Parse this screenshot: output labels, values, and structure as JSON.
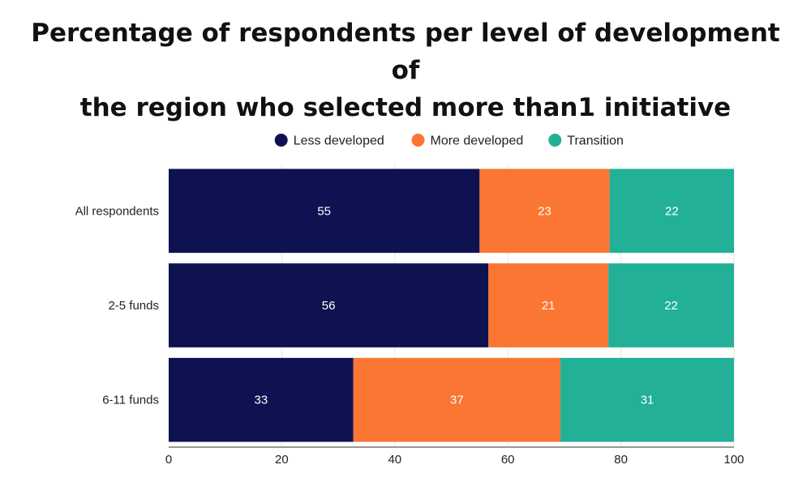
{
  "chart_data": {
    "type": "bar",
    "orientation": "horizontal",
    "stacked": true,
    "title": "Percentage of respondents per level of development of the region who selected more than1 initiative",
    "title_lines": [
      "Percentage of respondents per level of development of",
      "the region who selected more than1 initiative"
    ],
    "categories": [
      "All respondents",
      "2-5 funds",
      "6-11 funds"
    ],
    "series": [
      {
        "name": "Less developed",
        "color": "#0f1250",
        "values": [
          55,
          56,
          33
        ]
      },
      {
        "name": "More developed",
        "color": "#fb7533",
        "values": [
          23,
          21,
          37
        ]
      },
      {
        "name": "Transition",
        "color": "#22b097",
        "values": [
          22,
          22,
          31
        ]
      }
    ],
    "xlim": [
      0,
      100
    ],
    "xticks": [
      0,
      20,
      40,
      60,
      80,
      100
    ],
    "grid": true,
    "legend_position": "top-center",
    "xlabel": "",
    "ylabel": ""
  }
}
